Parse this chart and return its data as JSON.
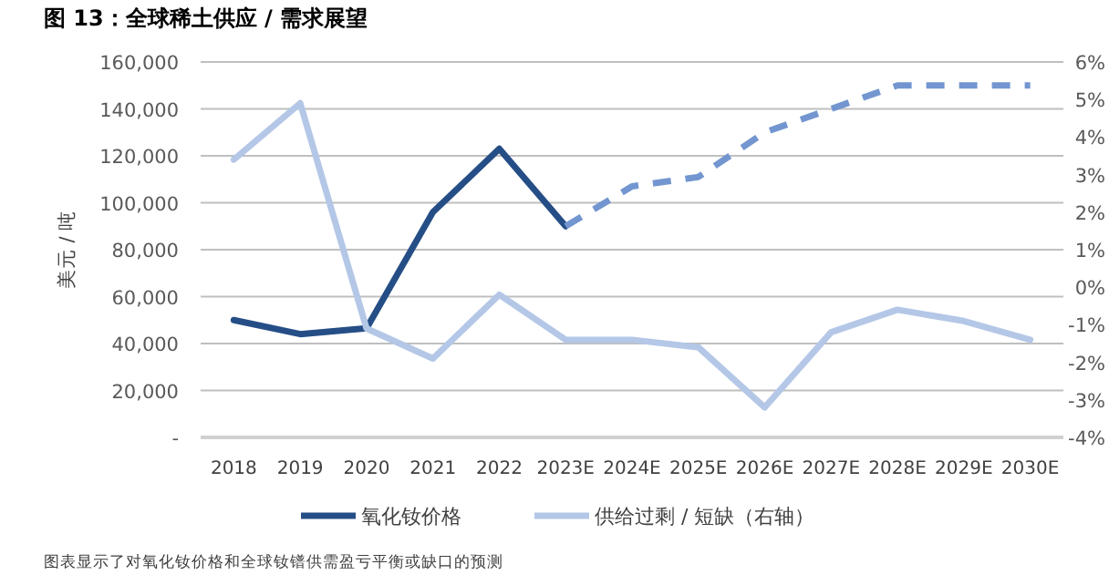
{
  "chart_data": {
    "type": "line",
    "title": "图 13：全球稀土供应 / 需求展望",
    "ylabel": "美元 / 吨",
    "categories": [
      "2018",
      "2019",
      "2020",
      "2021",
      "2022",
      "2023E",
      "2024E",
      "2025E",
      "2026E",
      "2027E",
      "2028E",
      "2029E",
      "2030E"
    ],
    "series": [
      {
        "name": "氧化钕价格",
        "color": "#264e86",
        "line_style": "solid",
        "values": [
          50000,
          44000,
          46500,
          96000,
          123000,
          90000,
          null,
          null,
          null,
          null,
          null,
          null,
          null
        ]
      },
      {
        "color": "#7396d0",
        "line_style": "dashed",
        "values": [
          null,
          null,
          null,
          null,
          null,
          90000,
          107000,
          111000,
          130000,
          140000,
          150000,
          150000,
          150000
        ]
      },
      {
        "name": "供给过剩 / 短缺（右轴）",
        "color": "#b4c7e7",
        "line_style": "solid",
        "axis": "y2",
        "values": [
          3.4,
          4.9,
          -1.1,
          -1.9,
          -0.2,
          -1.4,
          -1.4,
          -1.6,
          -3.2,
          -1.2,
          -0.6,
          -0.9,
          -1.4
        ]
      }
    ],
    "ylim": [
      0,
      160000
    ],
    "yticks": [
      {
        "value": 0,
        "label": "-"
      },
      {
        "value": 20000,
        "label": "20,000"
      },
      {
        "value": 40000,
        "label": "40,000"
      },
      {
        "value": 60000,
        "label": "60,000"
      },
      {
        "value": 80000,
        "label": "80,000"
      },
      {
        "value": 100000,
        "label": "100,000"
      },
      {
        "value": 120000,
        "label": "120,000"
      },
      {
        "value": 140000,
        "label": "140,000"
      },
      {
        "value": 160000,
        "label": "160,000"
      }
    ],
    "y2lim": [
      -4,
      6
    ],
    "y2ticks": [
      {
        "value": -4,
        "label": "-4%"
      },
      {
        "value": -3,
        "label": "-3%"
      },
      {
        "value": -2,
        "label": "-2%"
      },
      {
        "value": -1,
        "label": "-1%"
      },
      {
        "value": 0,
        "label": "0%"
      },
      {
        "value": 1,
        "label": "1%"
      },
      {
        "value": 2,
        "label": "2%"
      },
      {
        "value": 3,
        "label": "3%"
      },
      {
        "value": 4,
        "label": "4%"
      },
      {
        "value": 5,
        "label": "5%"
      },
      {
        "value": 6,
        "label": "6%"
      }
    ],
    "grid": "y",
    "legend": "bottom",
    "marker": "none",
    "annotations": [
      "图表显示了对氧化钕价格和全球钕镨供需盈亏平衡或缺口的预测"
    ]
  }
}
